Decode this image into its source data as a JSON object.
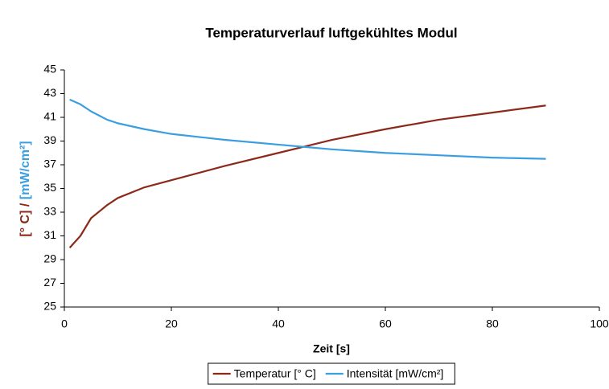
{
  "chart_data": {
    "type": "line",
    "title": "Temperaturverlauf luftgekühltes Modul",
    "xlabel": "Zeit [s]",
    "ylabel": [
      {
        "text": "[° C] / ",
        "color": "#8b2a1a"
      },
      {
        "text": "[mW/cm²]",
        "color": "#3a9ee0"
      }
    ],
    "x": [
      1,
      3,
      5,
      8,
      10,
      15,
      20,
      30,
      40,
      50,
      60,
      70,
      80,
      90
    ],
    "series": [
      {
        "name": "Temperatur [° C]",
        "color": "#8b2a1a",
        "values": [
          30,
          31,
          32.5,
          33.6,
          34.2,
          35.1,
          35.7,
          36.9,
          38,
          39.1,
          40,
          40.8,
          41.4,
          42
        ]
      },
      {
        "name": "Intensität [mW/cm²]",
        "color": "#3a9ee0",
        "values": [
          42.5,
          42.1,
          41.5,
          40.8,
          40.5,
          40,
          39.6,
          39.1,
          38.7,
          38.3,
          38,
          37.8,
          37.6,
          37.5
        ]
      }
    ],
    "xlim": [
      0,
      100
    ],
    "xticks": [
      0,
      20,
      40,
      60,
      80,
      100
    ],
    "ylim": [
      25,
      45
    ],
    "yticks": [
      25,
      27,
      29,
      31,
      33,
      35,
      37,
      39,
      41,
      43,
      45
    ],
    "grid": false,
    "legend": "bottom"
  }
}
